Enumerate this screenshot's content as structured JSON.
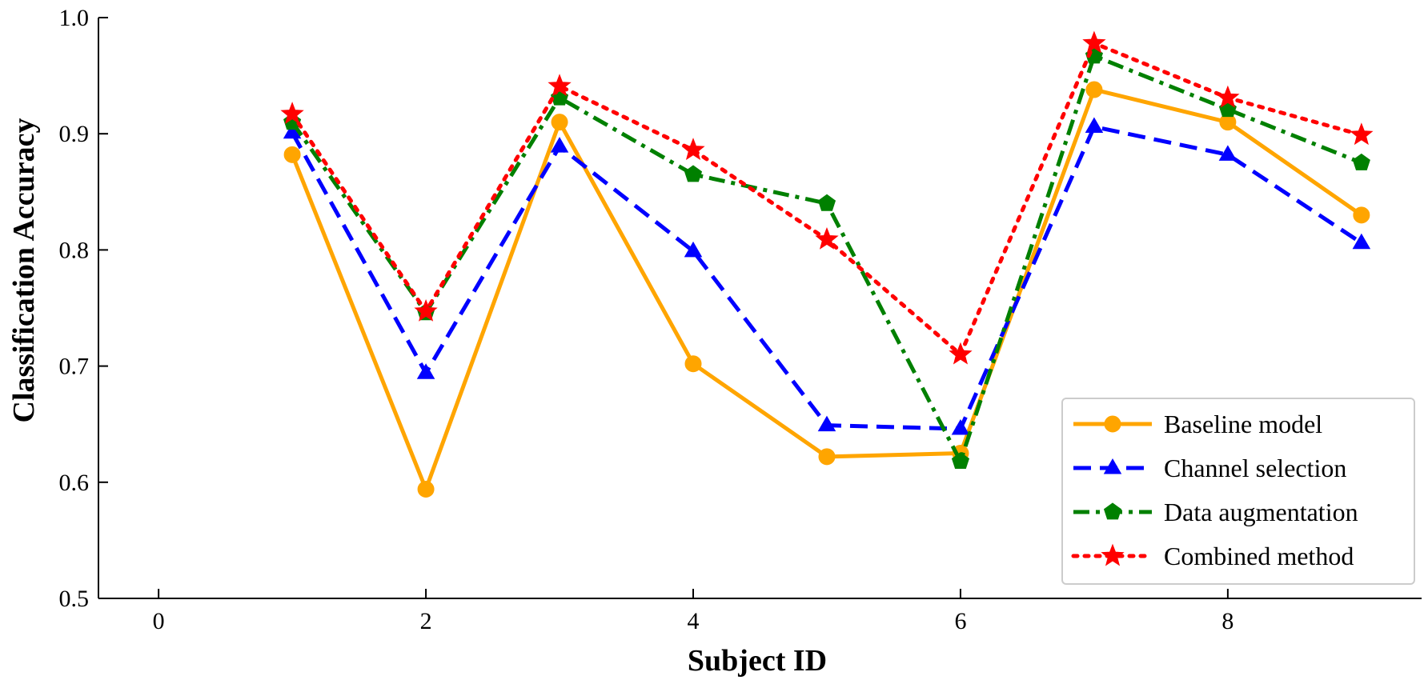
{
  "chart_data": {
    "type": "line",
    "title": "",
    "xlabel": "Subject ID",
    "ylabel": "Classification Accuracy",
    "xlim": [
      -0.45,
      9.45
    ],
    "ylim": [
      0.5,
      1.0
    ],
    "xticks": [
      0,
      2,
      4,
      6,
      8
    ],
    "yticks": [
      0.5,
      0.6,
      0.7,
      0.8,
      0.9,
      1.0
    ],
    "xtick_labels": [
      "0",
      "2",
      "4",
      "6",
      "8"
    ],
    "ytick_labels": [
      "0.5",
      "0.6",
      "0.7",
      "0.8",
      "0.9",
      "1.0"
    ],
    "grid": false,
    "legend_position": "lower-right",
    "x": [
      1,
      2,
      3,
      4,
      5,
      6,
      7,
      8,
      9
    ],
    "series": [
      {
        "name": "Baseline model",
        "color": "#FFA500",
        "dash": "solid",
        "marker": "circle",
        "values": [
          0.882,
          0.594,
          0.91,
          0.702,
          0.622,
          0.625,
          0.938,
          0.91,
          0.83
        ]
      },
      {
        "name": "Channel selection",
        "color": "#0000FF",
        "dash": "dashed",
        "marker": "triangle",
        "values": [
          0.901,
          0.694,
          0.889,
          0.799,
          0.649,
          0.646,
          0.906,
          0.882,
          0.806
        ]
      },
      {
        "name": "Data augmentation",
        "color": "#008000",
        "dash": "dashdot",
        "marker": "pentagon",
        "values": [
          0.91,
          0.746,
          0.931,
          0.865,
          0.84,
          0.618,
          0.967,
          0.921,
          0.875
        ]
      },
      {
        "name": "Combined method",
        "color": "#FF0000",
        "dash": "dotted",
        "marker": "star",
        "values": [
          0.917,
          0.747,
          0.941,
          0.886,
          0.809,
          0.71,
          0.978,
          0.931,
          0.899
        ]
      }
    ]
  }
}
